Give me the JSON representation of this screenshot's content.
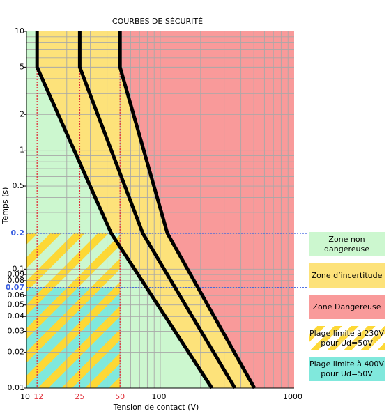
{
  "chart_data": {
    "type": "line",
    "title": "COURBES DE SÉCURITÉ",
    "xlabel": "Tension de contact (V)",
    "ylabel": "Temps (s)",
    "log_x": true,
    "log_y": true,
    "xlim": [
      10,
      1000
    ],
    "ylim": [
      0.01,
      10
    ],
    "xticks": [
      10,
      100,
      1000
    ],
    "yticks": [
      10,
      5,
      2,
      1,
      0.5,
      0.1,
      0.09,
      0.08,
      0.06,
      0.05,
      0.04,
      0.03,
      0.02,
      0.01
    ],
    "xgrid": [
      20,
      30,
      40,
      50,
      60,
      70,
      80,
      90,
      100,
      200,
      300,
      400,
      500,
      600,
      700,
      800,
      900
    ],
    "ygrid": [
      0.02,
      0.03,
      0.04,
      0.05,
      0.06,
      0.07,
      0.08,
      0.09,
      0.1,
      0.2,
      0.3,
      0.4,
      0.5,
      0.6,
      0.7,
      0.8,
      0.9,
      1,
      2,
      3,
      4,
      5,
      6,
      7,
      8,
      9
    ],
    "ref_x": [
      12,
      25,
      50
    ],
    "ref_x_color": "#e0303a",
    "ref_y": [
      0.2,
      0.07
    ],
    "ref_y_color": "#3a5fe0",
    "series": [
      {
        "color": "#000000",
        "x": [
          12,
          12,
          43,
          243
        ],
        "values": [
          10,
          5,
          0.2,
          0.01
        ]
      },
      {
        "color": "#000000",
        "x": [
          25,
          25,
          74,
          361
        ],
        "values": [
          10,
          5,
          0.2,
          0.01
        ]
      },
      {
        "color": "#000000",
        "x": [
          50,
          50,
          113,
          505
        ],
        "values": [
          10,
          5,
          0.2,
          0.01
        ]
      }
    ],
    "zone_colors": {
      "safe": "#ccf7cf",
      "uncertain": "#fde27a",
      "danger": "#f99a9a"
    },
    "hatched": [
      {
        "x": [
          10,
          50
        ],
        "y": [
          0.07,
          0.2
        ],
        "color": "#ccf7cf",
        "hatch": "#fdd835"
      },
      {
        "x": [
          10,
          50
        ],
        "y": [
          0.01,
          0.07
        ],
        "color": "#80e8dc",
        "hatch": "#fdd835"
      }
    ],
    "legend": [
      {
        "name": "Zone non dangereuse",
        "color": "#ccf7cf"
      },
      {
        "name": "Zone d’incertitude",
        "color": "#fde27a"
      },
      {
        "name": "Zone Dangereuse",
        "color": "#f99a9a"
      },
      {
        "name": "Plage limite à 230V\npour Ud=50V",
        "color": "#ffffff",
        "hatch": "#fdd835"
      },
      {
        "name": "Plage limite à 400V\npour Ud=50V",
        "color": "#80e8dc"
      }
    ]
  }
}
